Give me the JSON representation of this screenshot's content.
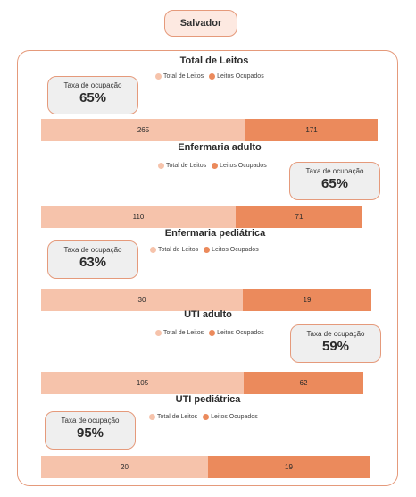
{
  "city": "Salvador",
  "legend": {
    "total_label": "Total de Leitos",
    "occupied_label": "Leitos Ocupados"
  },
  "colors": {
    "total": "#f6c3ab",
    "occupied": "#eb8a5c",
    "border": "#e59a7b"
  },
  "kpi_label": "Taxa de ocupação",
  "chart_data": [
    {
      "type": "bar",
      "title": "Total de Leitos",
      "occupancy_rate": "65%",
      "series": [
        {
          "name": "Total de Leitos",
          "values": [
            265
          ]
        },
        {
          "name": "Leitos Ocupados",
          "values": [
            171
          ]
        }
      ]
    },
    {
      "type": "bar",
      "title": "Enfermaria adulto",
      "occupancy_rate": "65%",
      "series": [
        {
          "name": "Total de Leitos",
          "values": [
            110
          ]
        },
        {
          "name": "Leitos Ocupados",
          "values": [
            71
          ]
        }
      ]
    },
    {
      "type": "bar",
      "title": "Enfermaria pediátrica",
      "occupancy_rate": "63%",
      "series": [
        {
          "name": "Total de Leitos",
          "values": [
            30
          ]
        },
        {
          "name": "Leitos Ocupados",
          "values": [
            19
          ]
        }
      ]
    },
    {
      "type": "bar",
      "title": "UTI adulto",
      "occupancy_rate": "59%",
      "series": [
        {
          "name": "Total de Leitos",
          "values": [
            105
          ]
        },
        {
          "name": "Leitos Ocupados",
          "values": [
            62
          ]
        }
      ]
    },
    {
      "type": "bar",
      "title": "UTI pediátrica",
      "occupancy_rate": "95%",
      "series": [
        {
          "name": "Total de Leitos",
          "values": [
            20
          ]
        },
        {
          "name": "Leitos Ocupados",
          "values": [
            19
          ]
        }
      ]
    }
  ]
}
